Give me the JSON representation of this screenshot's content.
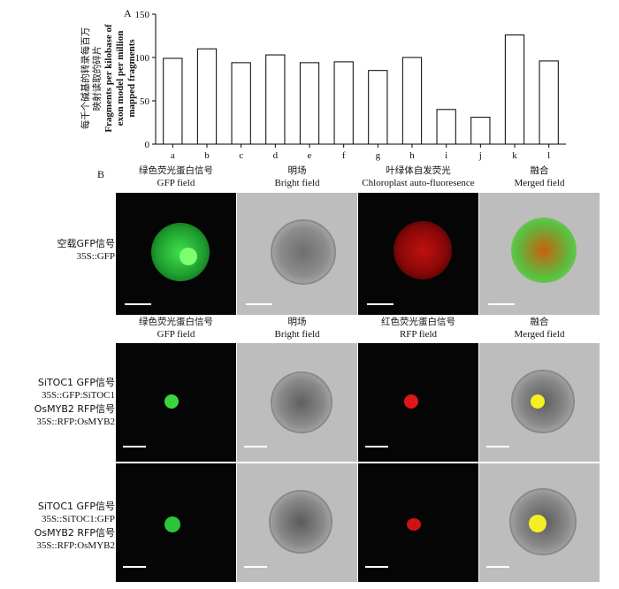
{
  "panel_a": {
    "letter": "A",
    "ylabel_zh_lines": [
      "每千个碱基的转录每百万",
      "映射读取的碎片"
    ],
    "ylabel_en_lines": [
      "Fragments per kilobase of",
      "exon model per million",
      "mapped fragments"
    ]
  },
  "chart_data": {
    "type": "bar",
    "categories": [
      "a",
      "b",
      "c",
      "d",
      "e",
      "f",
      "g",
      "h",
      "i",
      "j",
      "k",
      "l"
    ],
    "values": [
      99,
      110,
      94,
      103,
      94,
      95,
      85,
      100,
      40,
      31,
      126,
      96
    ],
    "yticks": [
      0,
      50,
      100,
      150
    ],
    "ylim": [
      0,
      150
    ],
    "grid": false
  },
  "panel_b": {
    "letter": "B",
    "row1_headers": [
      {
        "zh": "绿色荧光蛋白信号",
        "en": "GFP field"
      },
      {
        "zh": "明场",
        "en": "Bright field"
      },
      {
        "zh": "叶绿体自发荧光",
        "en": "Chloroplast auto-fluoresence"
      },
      {
        "zh": "融合",
        "en": "Merged field"
      }
    ],
    "row2_headers": [
      {
        "zh": "绿色荧光蛋白信号",
        "en": "GFP field"
      },
      {
        "zh": "明场",
        "en": "Bright field"
      },
      {
        "zh": "红色荧光蛋白信号",
        "en": "RFP field"
      },
      {
        "zh": "融合",
        "en": "Merged field"
      }
    ],
    "row_labels": [
      [
        "空载GFP信号",
        "35S::GFP"
      ],
      [
        "SiTOC1 GFP信号",
        "35S::GFP:SiTOC1",
        "OsMYB2 RFP信号",
        "35S::RFP:OsMYB2"
      ],
      [
        "SiTOC1 GFP信号",
        "35S::SiTOC1:GFP",
        "OsMYB2 RFP信号",
        "35S::RFP:OsMYB2"
      ]
    ]
  },
  "colors": {
    "gfp": "#2ecc40",
    "chloroplast": "#d01010",
    "merged_yellow": "#f5f020",
    "bar_fill": "#ffffff",
    "bar_stroke": "#000000"
  }
}
